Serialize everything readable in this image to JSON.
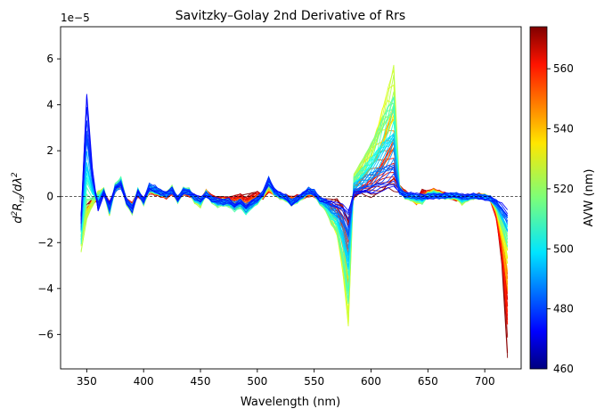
{
  "chart_data": {
    "type": "line",
    "title": "Savitzky–Golay 2nd Derivative of Rrs",
    "xlabel": "Wavelength (nm)",
    "ylabel_parts": [
      "d",
      "2",
      "R",
      "rs",
      "/dλ",
      "2"
    ],
    "y_offset_label": "1e−5",
    "xlim": [
      327,
      732
    ],
    "ylim": [
      -7.5,
      7.4
    ],
    "x_ticks": [
      350,
      400,
      450,
      500,
      550,
      600,
      650,
      700
    ],
    "y_ticks": [
      -6,
      -4,
      -2,
      0,
      2,
      4,
      6
    ],
    "grid": false,
    "zero_line": {
      "y": 0,
      "style": "dashed"
    },
    "colorbar": {
      "label": "AVW (nm)",
      "range": [
        460,
        574
      ],
      "ticks": [
        480,
        500,
        520,
        540,
        560
      ],
      "colormap": "jet"
    },
    "series_count": 60,
    "envelope_x": [
      345,
      350,
      355,
      360,
      365,
      370,
      375,
      380,
      385,
      390,
      395,
      400,
      405,
      410,
      415,
      420,
      425,
      430,
      435,
      440,
      445,
      450,
      455,
      460,
      465,
      470,
      475,
      480,
      485,
      490,
      495,
      500,
      505,
      510,
      515,
      520,
      525,
      530,
      535,
      540,
      545,
      550,
      555,
      560,
      565,
      570,
      575,
      580,
      585,
      590,
      595,
      600,
      605,
      610,
      615,
      620,
      625,
      630,
      635,
      640,
      645,
      650,
      655,
      660,
      665,
      670,
      675,
      680,
      685,
      690,
      695,
      700,
      705,
      710,
      715,
      720
    ],
    "profile_low_avw": [
      -1.0,
      4.5,
      1.2,
      -0.6,
      0.2,
      -0.5,
      0.4,
      0.6,
      -0.2,
      -0.6,
      0.2,
      -0.2,
      0.5,
      0.4,
      0.2,
      0.1,
      0.3,
      -0.1,
      0.3,
      0.2,
      0.0,
      -0.1,
      0.1,
      -0.1,
      -0.2,
      -0.3,
      -0.2,
      -0.4,
      -0.2,
      -0.5,
      -0.3,
      -0.1,
      0.2,
      0.9,
      0.3,
      0.1,
      0.0,
      -0.3,
      -0.1,
      0.1,
      0.3,
      0.2,
      -0.1,
      -0.2,
      -0.3,
      -0.4,
      -0.4,
      -0.7,
      0.1,
      0.1,
      0.2,
      0.2,
      0.3,
      0.35,
      0.4,
      0.5,
      0.3,
      0.1,
      0.1,
      0.05,
      0.05,
      0.0,
      0.0,
      0.0,
      0.05,
      0.1,
      0.1,
      0.05,
      0.0,
      0.05,
      0.0,
      -0.05,
      -0.1,
      -0.3,
      -0.5,
      -0.8
    ],
    "profile_high_avw": [
      -0.8,
      -0.6,
      -0.2,
      -0.1,
      0.2,
      -0.4,
      0.3,
      0.6,
      -0.2,
      -0.4,
      0.1,
      -0.2,
      0.3,
      0.2,
      0.1,
      0.0,
      0.2,
      -0.1,
      0.2,
      0.1,
      0.0,
      -0.2,
      0.2,
      0.0,
      -0.1,
      -0.1,
      -0.1,
      0.0,
      0.1,
      0.0,
      0.1,
      0.2,
      0.0,
      0.3,
      0.2,
      0.0,
      0.0,
      -0.1,
      0.0,
      0.0,
      0.1,
      0.1,
      -0.1,
      -0.2,
      -0.3,
      -0.2,
      -0.4,
      -0.9,
      0.0,
      0.1,
      0.1,
      0.1,
      0.2,
      0.2,
      0.3,
      0.3,
      0.4,
      0.2,
      0.0,
      -0.3,
      0.3,
      0.2,
      0.3,
      0.2,
      0.1,
      0.0,
      -0.1,
      0.0,
      0.0,
      0.0,
      0.05,
      0.0,
      -0.1,
      -1.0,
      -3.0,
      -7.0
    ],
    "profile_mid_avw": [
      -2.4,
      -1.0,
      -0.4,
      0.2,
      0.3,
      -0.8,
      0.5,
      0.8,
      -0.3,
      -0.7,
      0.3,
      -0.3,
      0.4,
      0.3,
      0.2,
      0.1,
      0.4,
      -0.2,
      0.3,
      0.3,
      -0.2,
      -0.4,
      0.2,
      -0.2,
      -0.4,
      -0.3,
      -0.4,
      -0.6,
      -0.5,
      -0.8,
      -0.5,
      -0.3,
      0.1,
      0.6,
      0.2,
      0.0,
      -0.1,
      -0.3,
      -0.2,
      0.0,
      0.3,
      0.2,
      -0.3,
      -0.6,
      -1.3,
      -1.8,
      -3.5,
      -5.9,
      1.0,
      1.5,
      2.0,
      2.6,
      3.3,
      4.2,
      5.0,
      5.8,
      0.4,
      0.0,
      -0.1,
      -0.2,
      -0.3,
      0.1,
      0.2,
      0.1,
      0.0,
      0.0,
      0.0,
      -0.3,
      -0.1,
      0.0,
      0.0,
      0.0,
      -0.1,
      -0.5,
      -1.5,
      -2.5
    ]
  }
}
